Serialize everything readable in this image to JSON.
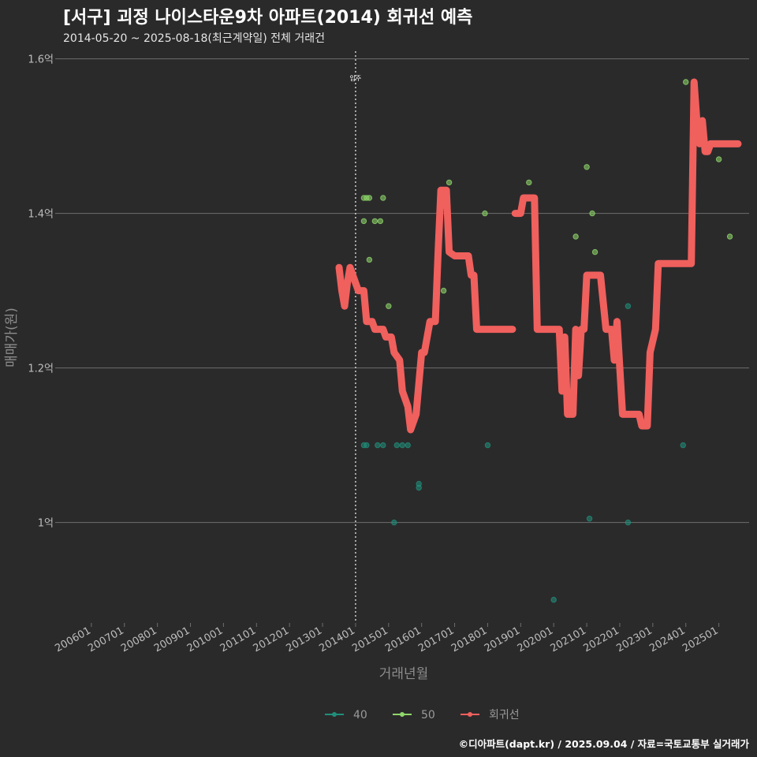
{
  "title": "[서구] 괴정 나이스타운9차 아파트(2014) 회귀선 예측",
  "subtitle": "2014-05-20 ~ 2025-08-18(최근계약일) 전체 거래건",
  "caption": "©디아파트(dapt.kr) / 2025.09.04 / 자료=국토교통부 실거래가",
  "colors": {
    "background": "#2b2a2b",
    "grid": "#6e6e6e",
    "s40": "#1f8f7a",
    "s50": "#8fd86a",
    "regression": "#f0605d"
  },
  "chart_data": {
    "type": "scatter",
    "xlabel": "거래년월",
    "ylabel": "매매가(원)",
    "x_range": [
      "2005-01",
      "2025-12"
    ],
    "ylim": [
      0.87,
      1.62
    ],
    "grid": "horizontal",
    "legend_position": "bottom",
    "x_ticks": [
      "200601",
      "200701",
      "200801",
      "200901",
      "201001",
      "201101",
      "201201",
      "201301",
      "201401",
      "201501",
      "201601",
      "201701",
      "201801",
      "201901",
      "202001",
      "202101",
      "202201",
      "202301",
      "202401",
      "202501"
    ],
    "y_ticks": [
      {
        "value": 1.0,
        "label": "1억"
      },
      {
        "value": 1.2,
        "label": "1.2억"
      },
      {
        "value": 1.4,
        "label": "1.4억"
      },
      {
        "value": 1.6,
        "label": "1.6억"
      }
    ],
    "annotation": {
      "x": "2014-01",
      "label": "입주"
    },
    "series": [
      {
        "name": "40",
        "color": "#1f8f7a",
        "points": [
          [
            "2014-04",
            1.1
          ],
          [
            "2014-05",
            1.1
          ],
          [
            "2014-09",
            1.1
          ],
          [
            "2014-11",
            1.1
          ],
          [
            "2015-04",
            1.1
          ],
          [
            "2015-06",
            1.1
          ],
          [
            "2015-08",
            1.1
          ],
          [
            "2015-03",
            1.0
          ],
          [
            "2015-12",
            1.05
          ],
          [
            "2015-12",
            1.045
          ],
          [
            "2018-01",
            1.1
          ],
          [
            "2020-01",
            0.9
          ],
          [
            "2021-02",
            1.005
          ],
          [
            "2022-04",
            1.0
          ],
          [
            "2023-12",
            1.1
          ],
          [
            "2022-04",
            1.28
          ]
        ]
      },
      {
        "name": "50",
        "color": "#8fd86a",
        "points": [
          [
            "2014-04",
            1.39
          ],
          [
            "2014-04",
            1.42
          ],
          [
            "2014-05",
            1.42
          ],
          [
            "2014-06",
            1.42
          ],
          [
            "2014-08",
            1.39
          ],
          [
            "2014-10",
            1.39
          ],
          [
            "2014-06",
            1.34
          ],
          [
            "2014-11",
            1.42
          ],
          [
            "2015-01",
            1.28
          ],
          [
            "2016-09",
            1.3
          ],
          [
            "2016-11",
            1.44
          ],
          [
            "2017-12",
            1.4
          ],
          [
            "2019-04",
            1.44
          ],
          [
            "2020-09",
            1.37
          ],
          [
            "2021-01",
            1.46
          ],
          [
            "2021-03",
            1.4
          ],
          [
            "2021-04",
            1.35
          ],
          [
            "2024-01",
            1.57
          ],
          [
            "2025-01",
            1.47
          ],
          [
            "2025-05",
            1.37
          ]
        ]
      },
      {
        "name": "회귀선",
        "color": "#f0605d",
        "segments": [
          [
            [
              "2013-07",
              1.33
            ],
            [
              "2013-08",
              1.3
            ],
            [
              "2013-09",
              1.28
            ],
            [
              "2013-10",
              1.31
            ],
            [
              "2013-11",
              1.33
            ],
            [
              "2014-01",
              1.31
            ],
            [
              "2014-02",
              1.3
            ],
            [
              "2014-04",
              1.3
            ],
            [
              "2014-05",
              1.26
            ],
            [
              "2014-07",
              1.26
            ],
            [
              "2014-08",
              1.25
            ],
            [
              "2014-11",
              1.25
            ],
            [
              "2014-12",
              1.24
            ],
            [
              "2015-02",
              1.24
            ],
            [
              "2015-03",
              1.22
            ],
            [
              "2015-05",
              1.21
            ],
            [
              "2015-06",
              1.17
            ],
            [
              "2015-08",
              1.15
            ],
            [
              "2015-09",
              1.12
            ],
            [
              "2015-11",
              1.14
            ],
            [
              "2016-01",
              1.22
            ],
            [
              "2016-02",
              1.22
            ],
            [
              "2016-04",
              1.26
            ],
            [
              "2016-06",
              1.26
            ],
            [
              "2016-07",
              1.35
            ],
            [
              "2016-08",
              1.43
            ],
            [
              "2016-10",
              1.43
            ],
            [
              "2016-11",
              1.35
            ],
            [
              "2017-01",
              1.345
            ],
            [
              "2017-06",
              1.345
            ],
            [
              "2017-07",
              1.32
            ],
            [
              "2017-08",
              1.32
            ],
            [
              "2017-09",
              1.25
            ],
            [
              "2018-10",
              1.25
            ]
          ],
          [
            [
              "2018-11",
              1.4
            ],
            [
              "2019-01",
              1.4
            ],
            [
              "2019-02",
              1.42
            ],
            [
              "2019-06",
              1.42
            ],
            [
              "2019-07",
              1.25
            ],
            [
              "2020-03",
              1.25
            ],
            [
              "2020-04",
              1.17
            ],
            [
              "2020-05",
              1.24
            ],
            [
              "2020-06",
              1.14
            ],
            [
              "2020-08",
              1.14
            ],
            [
              "2020-09",
              1.25
            ],
            [
              "2020-10",
              1.19
            ],
            [
              "2020-11",
              1.25
            ],
            [
              "2020-12",
              1.25
            ],
            [
              "2021-01",
              1.32
            ],
            [
              "2021-06",
              1.32
            ],
            [
              "2021-08",
              1.25
            ],
            [
              "2021-10",
              1.25
            ],
            [
              "2021-11",
              1.21
            ],
            [
              "2021-12",
              1.26
            ],
            [
              "2022-02",
              1.14
            ],
            [
              "2022-08",
              1.14
            ],
            [
              "2022-09",
              1.125
            ],
            [
              "2022-11",
              1.125
            ],
            [
              "2022-12",
              1.22
            ],
            [
              "2023-02",
              1.25
            ],
            [
              "2023-03",
              1.335
            ],
            [
              "2024-03",
              1.335
            ],
            [
              "2024-04",
              1.57
            ],
            [
              "2024-05",
              1.52
            ],
            [
              "2024-06",
              1.49
            ],
            [
              "2024-07",
              1.52
            ],
            [
              "2024-08",
              1.48
            ],
            [
              "2024-09",
              1.48
            ],
            [
              "2024-10",
              1.49
            ],
            [
              "2025-08",
              1.49
            ]
          ]
        ]
      }
    ]
  }
}
